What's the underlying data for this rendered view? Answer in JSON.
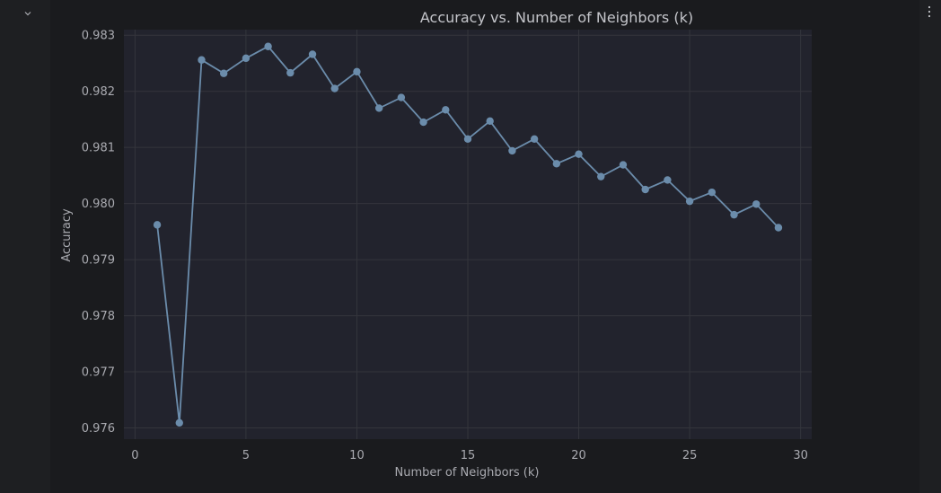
{
  "toolbar": {
    "collapse_icon": "chevron-down-icon",
    "menu_icon": "more-vertical-icon"
  },
  "colors": {
    "background": "#1a1b1e",
    "plot_background": "#22232d",
    "line": "#6b8cab",
    "marker": "#6b8cab",
    "grid": "#34353c",
    "text": "#a9aab0",
    "title": "#c4c5ca"
  },
  "chart_data": {
    "type": "line",
    "title": "Accuracy vs. Number of Neighbors (k)",
    "xlabel": "Number of Neighbors (k)",
    "ylabel": "Accuracy",
    "xlim": [
      -0.5,
      30.5
    ],
    "ylim": [
      0.9758,
      0.9831
    ],
    "xticks": [
      0,
      5,
      10,
      15,
      20,
      25,
      30
    ],
    "yticks": [
      0.976,
      0.977,
      0.978,
      0.979,
      0.98,
      0.981,
      0.982,
      0.983
    ],
    "ytick_labels": [
      "0.976",
      "0.977",
      "0.978",
      "0.979",
      "0.980",
      "0.981",
      "0.982",
      "0.983"
    ],
    "grid": true,
    "markers": true,
    "series": [
      {
        "x": [
          1,
          2,
          3,
          4,
          5,
          6,
          7,
          8,
          9,
          10,
          11,
          12,
          13,
          14,
          15,
          16,
          17,
          18,
          19,
          20,
          21,
          22,
          23,
          24,
          25,
          26,
          27,
          28,
          29
        ],
        "values": [
          0.97962,
          0.97609,
          0.98256,
          0.98232,
          0.98259,
          0.9828,
          0.98233,
          0.98266,
          0.98205,
          0.98235,
          0.9817,
          0.98189,
          0.98145,
          0.98167,
          0.98115,
          0.98147,
          0.98094,
          0.98115,
          0.98071,
          0.98088,
          0.98048,
          0.98069,
          0.98025,
          0.98042,
          0.98004,
          0.9802,
          0.9798,
          0.97999,
          0.97957
        ]
      }
    ]
  }
}
